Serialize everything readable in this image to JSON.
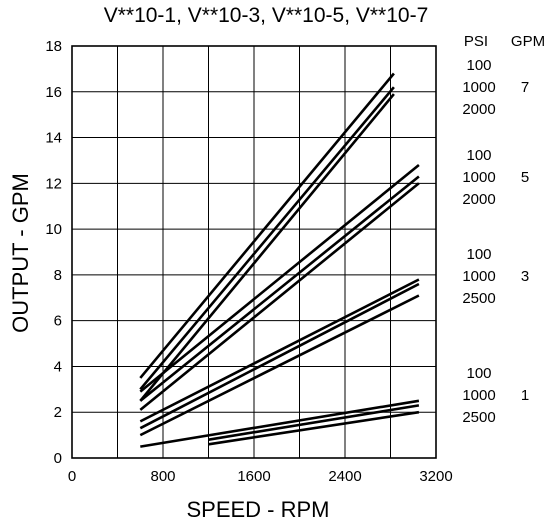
{
  "chart_data": {
    "type": "line",
    "title": "V**10-1, V**10-3, V**10-5, V**10-7",
    "xlabel": "SPEED - RPM",
    "ylabel": "OUTPUT - GPM",
    "xlim": [
      0,
      3200
    ],
    "ylim": [
      0,
      18
    ],
    "x_ticks": [
      "0",
      "800",
      "1600",
      "2400",
      "3200"
    ],
    "y_ticks": [
      "0",
      "2",
      "4",
      "6",
      "8",
      "10",
      "12",
      "14",
      "16",
      "18"
    ],
    "grid": true,
    "legend_headers": {
      "psi": "PSI",
      "gpm": "GPM"
    },
    "groups": [
      {
        "gpm": "7",
        "series": [
          {
            "psi": "100",
            "points": [
              [
                600,
                3.5
              ],
              [
                2830,
                16.8
              ]
            ]
          },
          {
            "psi": "1000",
            "points": [
              [
                600,
                3.0
              ],
              [
                2830,
                16.2
              ]
            ]
          },
          {
            "psi": "2000",
            "points": [
              [
                600,
                2.5
              ],
              [
                2830,
                15.9
              ]
            ]
          }
        ]
      },
      {
        "gpm": "5",
        "series": [
          {
            "psi": "100",
            "points": [
              [
                600,
                2.9
              ],
              [
                3050,
                12.8
              ]
            ]
          },
          {
            "psi": "1000",
            "points": [
              [
                600,
                2.5
              ],
              [
                3050,
                12.3
              ]
            ]
          },
          {
            "psi": "2000",
            "points": [
              [
                600,
                2.1
              ],
              [
                3050,
                12.0
              ]
            ]
          }
        ]
      },
      {
        "gpm": "3",
        "series": [
          {
            "psi": "100",
            "points": [
              [
                600,
                1.6
              ],
              [
                3050,
                7.8
              ]
            ]
          },
          {
            "psi": "1000",
            "points": [
              [
                600,
                1.3
              ],
              [
                3050,
                7.6
              ]
            ]
          },
          {
            "psi": "2500",
            "points": [
              [
                600,
                1.0
              ],
              [
                3050,
                7.1
              ]
            ]
          }
        ]
      },
      {
        "gpm": "1",
        "series": [
          {
            "psi": "100",
            "points": [
              [
                600,
                0.5
              ],
              [
                3050,
                2.5
              ]
            ]
          },
          {
            "psi": "1000",
            "points": [
              [
                1200,
                0.8
              ],
              [
                3050,
                2.3
              ]
            ]
          },
          {
            "psi": "2500",
            "points": [
              [
                1200,
                0.6
              ],
              [
                3050,
                2.0
              ]
            ]
          }
        ]
      }
    ]
  }
}
